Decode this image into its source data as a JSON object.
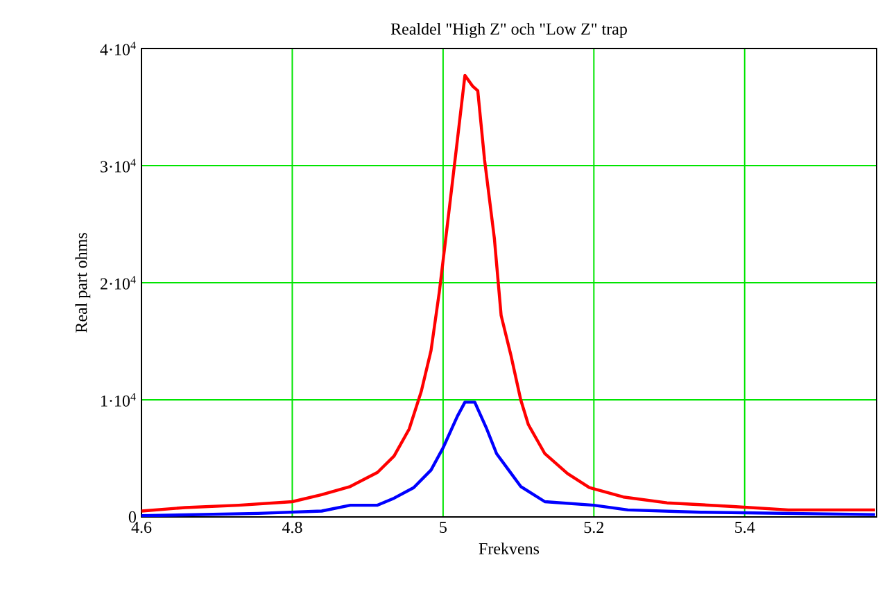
{
  "chart_data": {
    "type": "line",
    "title": "Realdel  \"High Z\" och \"Low Z\" trap",
    "xlabel": "Frekvens",
    "ylabel": "Real part ohms",
    "xlim": [
      4.6,
      5.575
    ],
    "ylim": [
      0,
      40000
    ],
    "xticks": [
      4.6,
      4.8,
      5,
      5.2,
      5.4
    ],
    "yticks": [
      0,
      {
        "value": 10000,
        "label": "1·10$^{4}$"
      },
      {
        "value": 20000,
        "label": "2·10$^{4}$"
      },
      {
        "value": 30000,
        "label": "3·10$^{4}$"
      },
      {
        "value": 40000,
        "label": "4·10$^{4}$"
      }
    ],
    "grid": true,
    "line_style": "solid",
    "series": [
      {
        "color": "#ff0000",
        "x": [
          4.6,
          4.658,
          4.729,
          4.8,
          4.839,
          4.877,
          4.913,
          4.935,
          4.955,
          4.971,
          4.984,
          4.995,
          5.006,
          5.019,
          5.029,
          5.039,
          5.046,
          5.055,
          5.068,
          5.077,
          5.09,
          5.103,
          5.113,
          5.135,
          5.165,
          5.194,
          5.239,
          5.297,
          5.381,
          5.458,
          5.573
        ],
        "values": [
          500,
          800,
          1000,
          1300,
          1900,
          2600,
          3800,
          5200,
          7500,
          10700,
          14200,
          19200,
          25100,
          32200,
          37700,
          36800,
          36400,
          30500,
          23800,
          17200,
          13800,
          10000,
          7900,
          5400,
          3700,
          2500,
          1700,
          1200,
          900,
          600,
          600
        ]
      },
      {
        "color": "#0000ff",
        "x": [
          4.6,
          4.755,
          4.839,
          4.877,
          4.913,
          4.935,
          4.961,
          4.984,
          5.0,
          5.019,
          5.029,
          5.042,
          5.058,
          5.071,
          5.087,
          5.103,
          5.135,
          5.2,
          5.245,
          5.342,
          5.573
        ],
        "values": [
          100,
          300,
          500,
          1000,
          1000,
          1600,
          2500,
          4000,
          5900,
          8600,
          9800,
          9800,
          7500,
          5400,
          4000,
          2600,
          1300,
          1000,
          600,
          400,
          200
        ]
      }
    ]
  }
}
